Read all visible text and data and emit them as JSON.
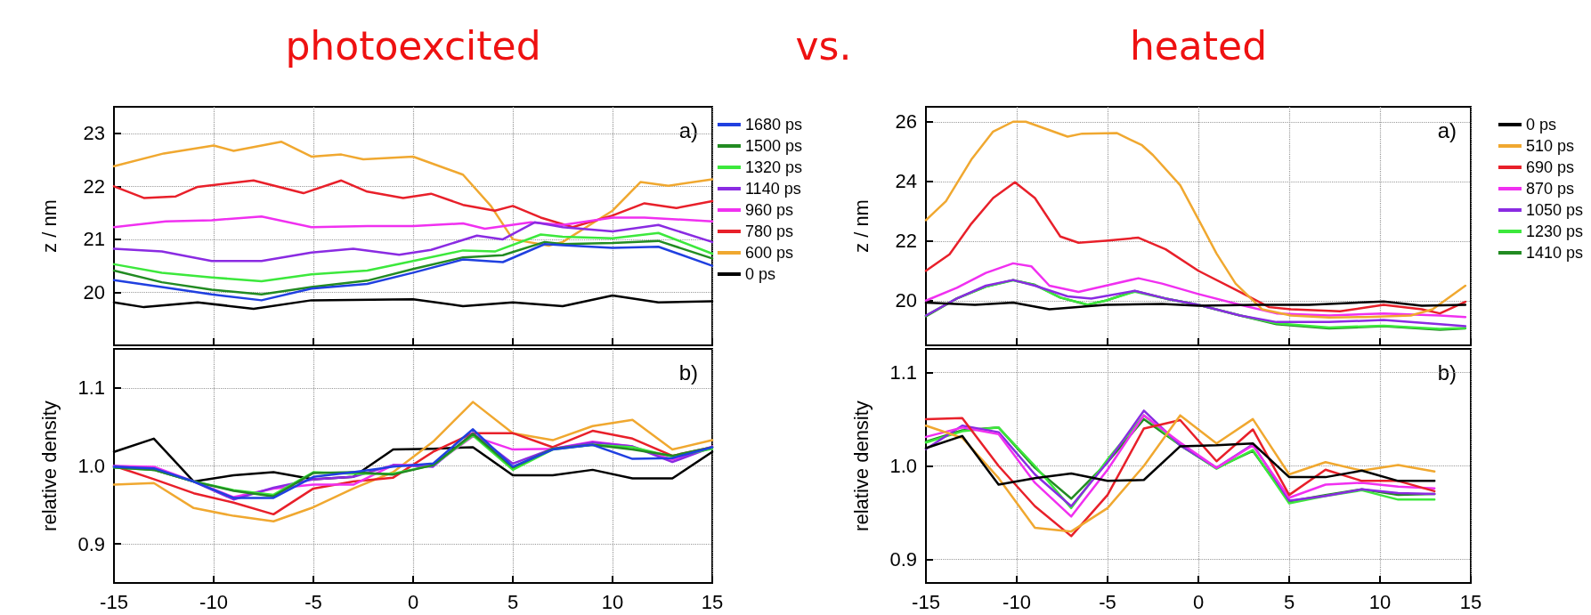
{
  "chart_data": [
    {
      "type": "line",
      "title": "photoexcited",
      "ylabel": "z / nm",
      "annotations": [
        "a)",
        "vs."
      ],
      "xlim": [
        -15,
        15
      ],
      "xticks": [
        -15,
        -10,
        -5,
        0,
        5,
        10,
        15
      ],
      "ylim": [
        19,
        23.5
      ],
      "yticks": [
        20,
        21,
        22,
        23
      ],
      "tick_labels": "y",
      "grid": true,
      "legend": "right",
      "series": [
        {
          "name": "1680 ps",
          "color": "#2040e0",
          "x": [
            -15,
            -12.6,
            -10.1,
            -7.6,
            -5.1,
            -2.3,
            0,
            2.5,
            4.5,
            6.6,
            7.5,
            10,
            12.3,
            15
          ],
          "values": [
            20.23,
            20.1,
            19.96,
            19.85,
            20.07,
            20.16,
            20.37,
            20.62,
            20.57,
            20.91,
            20.89,
            20.84,
            20.86,
            20.5
          ]
        },
        {
          "name": "1500 ps",
          "color": "#228b22",
          "x": [
            -15,
            -12.6,
            -10.1,
            -7.6,
            -5.1,
            -2.3,
            0,
            2.5,
            4.5,
            6.6,
            7.5,
            10,
            12.3,
            15
          ],
          "values": [
            20.41,
            20.19,
            20.05,
            19.96,
            20.1,
            20.22,
            20.44,
            20.66,
            20.7,
            20.95,
            20.91,
            20.93,
            20.97,
            20.64
          ]
        },
        {
          "name": "1320 ps",
          "color": "#3ce83c",
          "x": [
            -15,
            -12.6,
            -10.1,
            -7.6,
            -5.1,
            -2.3,
            0,
            2.5,
            4.1,
            6.4,
            7.5,
            10,
            12.3,
            15
          ],
          "values": [
            20.53,
            20.37,
            20.28,
            20.21,
            20.34,
            20.41,
            20.59,
            20.79,
            20.77,
            21.09,
            21.05,
            21.02,
            21.12,
            20.73
          ]
        },
        {
          "name": "1140 ps",
          "color": "#8a2be2",
          "x": [
            -15,
            -12.6,
            -10.1,
            -7.6,
            -5.1,
            -3,
            -0.7,
            0.9,
            3.2,
            4.5,
            6.1,
            7.5,
            10,
            12.3,
            15
          ],
          "values": [
            20.82,
            20.77,
            20.59,
            20.59,
            20.75,
            20.82,
            20.71,
            20.8,
            21.07,
            21.0,
            21.32,
            21.23,
            21.15,
            21.27,
            20.95
          ]
        },
        {
          "name": "960 ps",
          "color": "#f030f0",
          "x": [
            -15,
            -12.4,
            -10.1,
            -7.6,
            -5.1,
            -2.3,
            0,
            2.5,
            3.6,
            5.9,
            7.5,
            10,
            11.6,
            15
          ],
          "values": [
            21.23,
            21.34,
            21.36,
            21.43,
            21.23,
            21.25,
            21.25,
            21.3,
            21.2,
            21.32,
            21.27,
            21.41,
            21.41,
            21.34
          ]
        },
        {
          "name": "780 ps",
          "color": "#e8202a",
          "x": [
            -15,
            -13.5,
            -11.9,
            -10.8,
            -8,
            -5.5,
            -3.6,
            -2.3,
            -0.5,
            0.9,
            2.5,
            4.1,
            5,
            6.4,
            8,
            10,
            11.6,
            13.2,
            15
          ],
          "values": [
            22.0,
            21.78,
            21.81,
            21.99,
            22.11,
            21.87,
            22.11,
            21.9,
            21.78,
            21.86,
            21.65,
            21.54,
            21.63,
            21.41,
            21.23,
            21.45,
            21.68,
            21.59,
            21.72
          ]
        },
        {
          "name": "600 ps",
          "color": "#f0a830",
          "x": [
            -15,
            -12.5,
            -10,
            -9,
            -6.6,
            -5.1,
            -3.6,
            -2.5,
            0,
            2.5,
            3.9,
            5,
            6.8,
            7.5,
            10,
            11.4,
            12.8,
            15
          ],
          "values": [
            22.38,
            22.62,
            22.77,
            22.67,
            22.84,
            22.56,
            22.6,
            22.51,
            22.56,
            22.22,
            21.63,
            21.0,
            20.88,
            20.95,
            21.54,
            22.08,
            22.01,
            22.13
          ]
        },
        {
          "name": "0 ps",
          "color": "#000000",
          "x": [
            -15,
            -13.5,
            -10.8,
            -8,
            -5.1,
            0,
            2.5,
            5,
            7.5,
            10,
            12.3,
            15
          ],
          "values": [
            19.81,
            19.72,
            19.81,
            19.69,
            19.85,
            19.87,
            19.74,
            19.81,
            19.74,
            19.94,
            19.81,
            19.83
          ]
        }
      ]
    },
    {
      "type": "line",
      "ylabel": "relative density",
      "annotations": [
        "b)"
      ],
      "xlim": [
        -15,
        15
      ],
      "xticks": [
        -15,
        -10,
        -5,
        0,
        5,
        10,
        15
      ],
      "ylim": [
        0.85,
        1.15
      ],
      "yticks": [
        0.9,
        {
          "value": 1,
          "label": "1.0"
        },
        1.1
      ],
      "grid": true,
      "series": [
        {
          "color": "#2040e0",
          "x": [
            -15,
            -13,
            -11,
            -9,
            -7,
            -5,
            -3,
            -1,
            1,
            3,
            5,
            7,
            9,
            11,
            13,
            15
          ],
          "values": [
            0.999,
            0.997,
            0.98,
            0.959,
            0.959,
            0.986,
            0.992,
            0.999,
            1.003,
            1.047,
            0.999,
            1.021,
            1.027,
            1.009,
            1.01,
            1.024
          ]
        },
        {
          "color": "#228b22",
          "x": [
            -15,
            -13,
            -11,
            -9,
            -7,
            -5,
            -3,
            -1,
            1,
            3,
            5,
            7,
            9,
            11,
            13,
            15
          ],
          "values": [
            0.998,
            0.995,
            0.98,
            0.968,
            0.961,
            0.991,
            0.992,
            0.989,
            1.001,
            1.041,
            0.998,
            1.022,
            1.027,
            1.021,
            1.013,
            1.024
          ]
        },
        {
          "color": "#3ce83c",
          "x": [
            -15,
            -13,
            -11,
            -9,
            -7,
            -5,
            -3,
            -1,
            1,
            3,
            5,
            7,
            9,
            11,
            13,
            15
          ],
          "values": [
            0.998,
            0.995,
            0.98,
            0.969,
            0.963,
            0.992,
            0.99,
            0.99,
            1.001,
            1.039,
            0.995,
            1.021,
            1.027,
            1.024,
            1.012,
            1.022
          ]
        },
        {
          "color": "#8a2be2",
          "x": [
            -15,
            -13,
            -11,
            -9,
            -7,
            -5,
            -3,
            -1,
            1,
            3,
            5,
            7,
            9,
            11,
            13,
            15
          ],
          "values": [
            1.0,
            0.995,
            0.98,
            0.957,
            0.972,
            0.983,
            0.986,
            1.001,
            0.999,
            1.042,
            1.003,
            1.022,
            1.03,
            1.025,
            1.005,
            1.024
          ]
        },
        {
          "color": "#f030f0",
          "x": [
            -15,
            -13,
            -11,
            -9,
            -7,
            -5,
            -3,
            -1,
            1,
            3,
            5,
            7,
            9,
            11,
            13,
            15
          ],
          "values": [
            1.0,
            0.999,
            0.98,
            0.96,
            0.971,
            0.976,
            0.976,
            1.001,
            1.001,
            1.038,
            1.021,
            1.022,
            1.031,
            1.025,
            1.008,
            1.025
          ]
        },
        {
          "color": "#e8202a",
          "x": [
            -15,
            -13,
            -11,
            -9,
            -7,
            -5,
            -3,
            -1,
            1,
            3,
            5,
            7,
            9,
            11,
            13,
            15
          ],
          "values": [
            1.0,
            0.983,
            0.965,
            0.953,
            0.938,
            0.971,
            0.98,
            0.985,
            1.018,
            1.042,
            1.042,
            1.024,
            1.045,
            1.035,
            1.013,
            1.024
          ]
        },
        {
          "color": "#f0a830",
          "x": [
            -15,
            -13,
            -11,
            -9,
            -7,
            -5,
            -3,
            -1,
            1,
            3,
            5,
            7,
            9,
            11,
            13,
            15
          ],
          "values": [
            0.976,
            0.978,
            0.946,
            0.936,
            0.929,
            0.947,
            0.971,
            0.992,
            1.031,
            1.082,
            1.042,
            1.033,
            1.051,
            1.059,
            1.021,
            1.033
          ]
        },
        {
          "color": "#000000",
          "x": [
            -15,
            -13,
            -11,
            -9,
            -7,
            -5,
            -3,
            -1,
            1,
            3,
            5,
            7,
            9,
            11,
            13,
            15
          ],
          "values": [
            1.018,
            1.035,
            0.98,
            0.988,
            0.992,
            0.983,
            0.986,
            1.021,
            1.022,
            1.024,
            0.988,
            0.988,
            0.995,
            0.984,
            0.984,
            1.018
          ]
        }
      ]
    },
    {
      "type": "line",
      "title": "heated",
      "ylabel": "z / nm",
      "annotations": [
        "a)"
      ],
      "xlim": [
        -15,
        15
      ],
      "xticks": [
        -15,
        -10,
        -5,
        0,
        5,
        10,
        15
      ],
      "ylim": [
        18.5,
        26.5
      ],
      "yticks": [
        20,
        22,
        24,
        26
      ],
      "tick_labels": "y",
      "grid": true,
      "legend": "right",
      "series": [
        {
          "name": "0 ps",
          "color": "#000000",
          "x": [
            -15,
            -12.3,
            -10.2,
            -8.2,
            -5.1,
            -2,
            0,
            3.1,
            6.1,
            10.2,
            12.3,
            14.7
          ],
          "values": [
            19.93,
            19.86,
            19.93,
            19.71,
            19.86,
            19.89,
            19.83,
            19.86,
            19.86,
            19.97,
            19.83,
            19.86
          ]
        },
        {
          "name": "510 ps",
          "color": "#f0a830",
          "x": [
            -15,
            -13.9,
            -12.5,
            -11.3,
            -10.2,
            -9.5,
            -7.2,
            -6.4,
            -4.5,
            -3.1,
            -2.5,
            -1,
            0,
            1,
            2.05,
            3.5,
            5.1,
            7.2,
            9.2,
            11.7,
            12.9,
            14.7
          ],
          "values": [
            22.7,
            23.33,
            24.73,
            25.67,
            26.0,
            26.0,
            25.5,
            25.6,
            25.62,
            25.21,
            24.88,
            23.87,
            22.73,
            21.58,
            20.57,
            19.71,
            19.5,
            19.43,
            19.45,
            19.5,
            19.71,
            20.5
          ]
        },
        {
          "name": "690 ps",
          "color": "#e8202a",
          "x": [
            -15,
            -13.7,
            -12.5,
            -11.3,
            -10.1,
            -9,
            -7.6,
            -6.6,
            -5.1,
            -3.3,
            -1.8,
            0,
            2.3,
            3.9,
            5.1,
            7.8,
            10.2,
            12.3,
            13.3,
            14.7
          ],
          "values": [
            21.0,
            21.55,
            22.58,
            23.44,
            23.97,
            23.44,
            22.15,
            21.94,
            22.01,
            22.11,
            21.72,
            21.0,
            20.29,
            19.78,
            19.71,
            19.64,
            19.86,
            19.71,
            19.57,
            19.96
          ]
        },
        {
          "name": "870 ps",
          "color": "#f030f0",
          "x": [
            -15,
            -13.3,
            -11.7,
            -10.2,
            -9.2,
            -8.2,
            -6.6,
            -5.1,
            -3.3,
            -2,
            0,
            2.3,
            4.3,
            7.2,
            10.2,
            13.3,
            14.7
          ],
          "values": [
            20.0,
            20.43,
            20.93,
            21.25,
            21.15,
            20.5,
            20.29,
            20.5,
            20.75,
            20.57,
            20.22,
            19.86,
            19.57,
            19.5,
            19.57,
            19.5,
            19.45
          ]
        },
        {
          "name": "1050 ps",
          "color": "#8a2be2",
          "x": [
            -15,
            -13.3,
            -11.7,
            -10.2,
            -9,
            -7.2,
            -5.9,
            -3.5,
            -1.8,
            0,
            2.3,
            4.3,
            7.2,
            10.2,
            13.3,
            14.7
          ],
          "values": [
            19.5,
            20.07,
            20.5,
            20.69,
            20.5,
            20.14,
            20.07,
            20.33,
            20.07,
            19.86,
            19.5,
            19.28,
            19.28,
            19.35,
            19.21,
            19.14
          ]
        },
        {
          "name": "1230 ps",
          "color": "#3ce83c",
          "x": [
            -15,
            -13.3,
            -11.7,
            -10.2,
            -9,
            -7.6,
            -6.1,
            -5.1,
            -3.5,
            -1.8,
            0,
            2.3,
            4.3,
            7.2,
            10.2,
            13.3,
            14.7
          ],
          "values": [
            19.5,
            20.07,
            20.47,
            20.68,
            20.52,
            20.1,
            19.87,
            20.0,
            20.3,
            20.07,
            19.86,
            19.5,
            19.24,
            19.1,
            19.16,
            19.05,
            19.08
          ]
        },
        {
          "name": "1410 ps",
          "color": "#228b22",
          "x": [
            -15,
            -13.3,
            -11.7,
            -10.2,
            -9,
            -7.6,
            -6.1,
            -5.1,
            -3.5,
            -1.8,
            0,
            2.3,
            4.3,
            7.2,
            10.2,
            13.3,
            14.7
          ],
          "values": [
            19.47,
            20.07,
            20.47,
            20.69,
            20.53,
            20.1,
            19.86,
            20.0,
            20.32,
            20.07,
            19.86,
            19.5,
            19.21,
            19.07,
            19.14,
            19.02,
            19.07
          ]
        }
      ]
    },
    {
      "type": "line",
      "ylabel": "relative density",
      "annotations": [
        "b)"
      ],
      "xlim": [
        -15,
        15
      ],
      "xticks": [
        -15,
        -10,
        -5,
        0,
        5,
        10,
        15
      ],
      "ylim": [
        0.875,
        1.125
      ],
      "yticks": [
        0.9,
        {
          "value": 1,
          "label": "1.0"
        },
        1.1
      ],
      "grid": true,
      "series": [
        {
          "color": "#000000",
          "x": [
            -15,
            -13,
            -11,
            -9,
            -7,
            -5,
            -3,
            -1,
            1,
            3,
            5,
            7,
            9,
            11,
            13
          ],
          "values": [
            1.019,
            1.032,
            0.98,
            0.987,
            0.992,
            0.984,
            0.985,
            1.021,
            1.022,
            1.024,
            0.988,
            0.988,
            0.995,
            0.984,
            0.984
          ]
        },
        {
          "color": "#f0a830",
          "x": [
            -15,
            -13,
            -11,
            -9,
            -7,
            -5,
            -3,
            -1,
            1,
            3,
            5,
            7,
            9,
            11,
            13
          ],
          "values": [
            1.043,
            1.03,
            0.987,
            0.934,
            0.93,
            0.955,
            1.0,
            1.054,
            1.024,
            1.05,
            0.991,
            1.004,
            0.995,
            1.001,
            0.994
          ]
        },
        {
          "color": "#e8202a",
          "x": [
            -15,
            -13,
            -11,
            -9,
            -7,
            -5,
            -3,
            -1,
            1,
            3,
            5,
            7,
            9,
            11,
            13
          ],
          "values": [
            1.05,
            1.051,
            1.0,
            0.957,
            0.925,
            0.969,
            1.04,
            1.049,
            1.005,
            1.039,
            0.969,
            0.996,
            0.984,
            0.984,
            0.973
          ]
        },
        {
          "color": "#f030f0",
          "x": [
            -15,
            -13,
            -11,
            -9,
            -7,
            -5,
            -3,
            -1,
            1,
            3,
            5,
            7,
            9,
            11,
            13
          ],
          "values": [
            1.031,
            1.041,
            1.034,
            0.982,
            0.946,
            0.996,
            1.054,
            1.025,
            0.998,
            1.022,
            0.966,
            0.98,
            0.982,
            0.978,
            0.976
          ]
        },
        {
          "color": "#8a2be2",
          "x": [
            -15,
            -13,
            -11,
            -9,
            -7,
            -5,
            -3,
            -1,
            1,
            3,
            5,
            7,
            9,
            11,
            13
          ],
          "values": [
            1.018,
            1.043,
            1.036,
            0.991,
            0.957,
            1.004,
            1.059,
            1.022,
            0.998,
            1.023,
            0.963,
            0.968,
            0.975,
            0.971,
            0.97
          ]
        },
        {
          "color": "#3ce83c",
          "x": [
            -15,
            -13,
            -11,
            -9,
            -7,
            -5,
            -3,
            -1,
            1,
            3,
            5,
            7,
            9,
            11,
            13
          ],
          "values": [
            1.025,
            1.037,
            1.041,
            1.0,
            0.955,
            1.007,
            1.054,
            1.022,
            0.997,
            1.017,
            0.96,
            0.968,
            0.974,
            0.964,
            0.964
          ]
        },
        {
          "color": "#228b22",
          "x": [
            -15,
            -13,
            -11,
            -9,
            -7,
            -5,
            -3,
            -1,
            1,
            3,
            5,
            7,
            9,
            11,
            13
          ],
          "values": [
            1.026,
            1.038,
            1.041,
            0.998,
            0.965,
            1.004,
            1.05,
            1.022,
            0.998,
            1.016,
            0.962,
            0.969,
            0.975,
            0.969,
            0.97
          ]
        }
      ]
    }
  ]
}
